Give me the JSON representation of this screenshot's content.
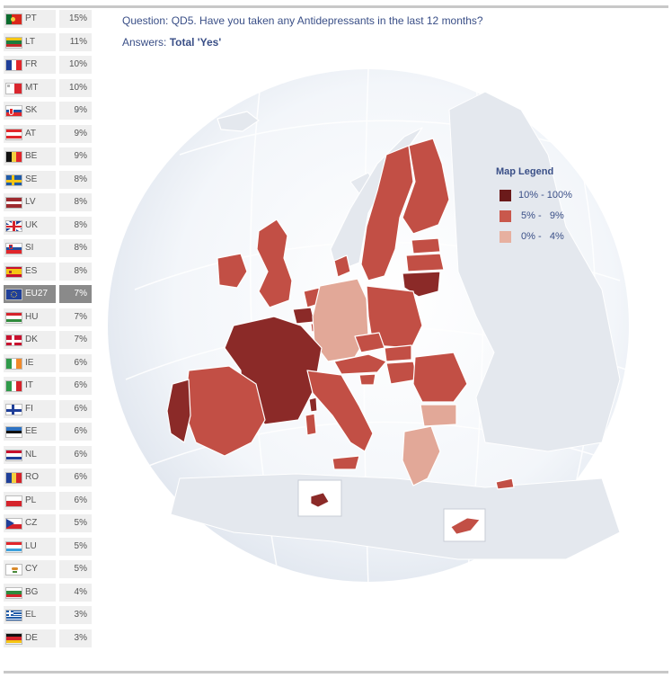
{
  "question": {
    "prefix": "Question:",
    "text": "QD5. Have you taken any Antidepressants in the last 12 months?"
  },
  "answers": {
    "prefix": "Answers:",
    "text": "Total 'Yes'"
  },
  "legend": {
    "title": "Map Legend",
    "items": [
      {
        "label": "10% - 100%",
        "color": "#6b1a1a"
      },
      {
        "label": " 5% -   9%",
        "color": "#c9584c"
      },
      {
        "label": " 0% -   4%",
        "color": "#e7b0a0"
      }
    ]
  },
  "colors": {
    "high": "#8b2a28",
    "mid": "#c24f45",
    "low": "#e2a898",
    "land": "#e2e6ec",
    "sea": "#f2f5fa"
  },
  "countries": [
    {
      "code": "PT",
      "value": "15%",
      "flag": "pt-flag-icon"
    },
    {
      "code": "LT",
      "value": "11%",
      "flag": "lt-flag-icon"
    },
    {
      "code": "FR",
      "value": "10%",
      "flag": "fr-flag-icon"
    },
    {
      "code": "MT",
      "value": "10%",
      "flag": "mt-flag-icon"
    },
    {
      "code": "SK",
      "value": "9%",
      "flag": "sk-flag-icon"
    },
    {
      "code": "AT",
      "value": "9%",
      "flag": "at-flag-icon"
    },
    {
      "code": "BE",
      "value": "9%",
      "flag": "be-flag-icon"
    },
    {
      "code": "SE",
      "value": "8%",
      "flag": "se-flag-icon"
    },
    {
      "code": "LV",
      "value": "8%",
      "flag": "lv-flag-icon"
    },
    {
      "code": "UK",
      "value": "8%",
      "flag": "uk-flag-icon"
    },
    {
      "code": "SI",
      "value": "8%",
      "flag": "si-flag-icon"
    },
    {
      "code": "ES",
      "value": "8%",
      "flag": "es-flag-icon"
    },
    {
      "code": "EU27",
      "value": "7%",
      "flag": "eu-flag-icon",
      "highlight": true
    },
    {
      "code": "HU",
      "value": "7%",
      "flag": "hu-flag-icon"
    },
    {
      "code": "DK",
      "value": "7%",
      "flag": "dk-flag-icon"
    },
    {
      "code": "IE",
      "value": "6%",
      "flag": "ie-flag-icon"
    },
    {
      "code": "IT",
      "value": "6%",
      "flag": "it-flag-icon"
    },
    {
      "code": "FI",
      "value": "6%",
      "flag": "fi-flag-icon"
    },
    {
      "code": "EE",
      "value": "6%",
      "flag": "ee-flag-icon"
    },
    {
      "code": "NL",
      "value": "6%",
      "flag": "nl-flag-icon"
    },
    {
      "code": "RO",
      "value": "6%",
      "flag": "ro-flag-icon"
    },
    {
      "code": "PL",
      "value": "6%",
      "flag": "pl-flag-icon"
    },
    {
      "code": "CZ",
      "value": "5%",
      "flag": "cz-flag-icon"
    },
    {
      "code": "LU",
      "value": "5%",
      "flag": "lu-flag-icon"
    },
    {
      "code": "CY",
      "value": "5%",
      "flag": "cy-flag-icon"
    },
    {
      "code": "BG",
      "value": "4%",
      "flag": "bg-flag-icon"
    },
    {
      "code": "EL",
      "value": "3%",
      "flag": "el-flag-icon"
    },
    {
      "code": "DE",
      "value": "3%",
      "flag": "de-flag-icon"
    }
  ]
}
